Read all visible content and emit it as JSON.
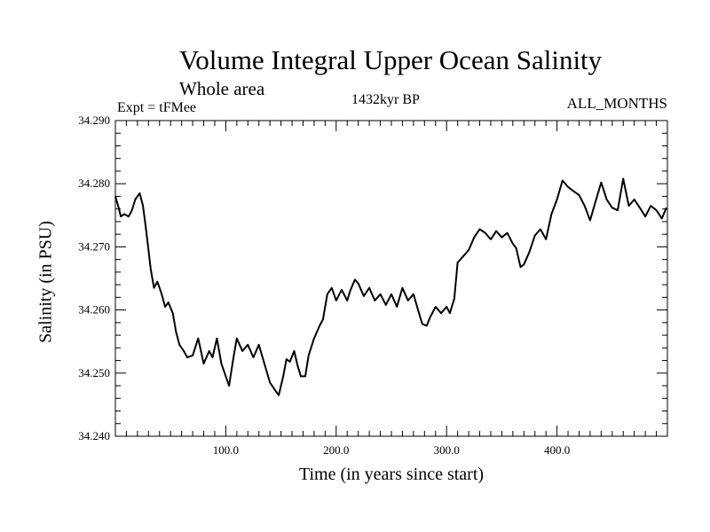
{
  "chart_data": {
    "type": "line",
    "title": "Volume Integral Upper Ocean Salinity",
    "subtitle": "Whole area",
    "annotations": {
      "experiment": "Expt = tFMee",
      "period": "1432kyr BP",
      "season": "ALL_MONTHS"
    },
    "xlabel": "Time (in years since start)",
    "ylabel": "Salinity (in PSU)",
    "xlim": [
      0,
      500
    ],
    "ylim": [
      34.24,
      34.29
    ],
    "xticks": [
      100,
      200,
      300,
      400
    ],
    "xtick_labels": [
      "100.0",
      "200.0",
      "300.0",
      "400.0"
    ],
    "yticks": [
      34.24,
      34.25,
      34.26,
      34.27,
      34.28,
      34.29
    ],
    "ytick_labels": [
      "34.240",
      "34.250",
      "34.260",
      "34.270",
      "34.280",
      "34.290"
    ],
    "grid": false,
    "series": [
      {
        "name": "Salinity",
        "x": [
          0,
          3,
          5,
          8,
          12,
          15,
          18,
          22,
          25,
          28,
          32,
          35,
          38,
          42,
          45,
          48,
          52,
          55,
          58,
          62,
          65,
          70,
          75,
          80,
          85,
          88,
          92,
          96,
          100,
          103,
          107,
          110,
          115,
          120,
          125,
          130,
          135,
          140,
          145,
          148,
          152,
          155,
          158,
          162,
          165,
          168,
          172,
          175,
          180,
          185,
          188,
          192,
          196,
          200,
          205,
          210,
          213,
          217,
          220,
          225,
          230,
          235,
          240,
          245,
          250,
          255,
          260,
          265,
          270,
          275,
          278,
          282,
          285,
          290,
          295,
          300,
          303,
          307,
          310,
          315,
          320,
          325,
          330,
          335,
          340,
          345,
          350,
          355,
          360,
          363,
          367,
          370,
          375,
          380,
          385,
          390,
          395,
          400,
          405,
          410,
          415,
          420,
          425,
          430,
          435,
          440,
          445,
          450,
          455,
          460,
          465,
          470,
          475,
          480,
          485,
          490,
          495,
          499
        ],
        "values": [
          34.278,
          34.2762,
          34.2748,
          34.2752,
          34.2748,
          34.2758,
          34.2775,
          34.2785,
          34.2765,
          34.2725,
          34.2665,
          34.2635,
          34.2645,
          34.2625,
          34.2605,
          34.2612,
          34.2595,
          34.2565,
          34.2545,
          34.2535,
          34.2525,
          34.2528,
          34.2555,
          34.2515,
          34.2535,
          34.2525,
          34.2555,
          34.2515,
          34.2495,
          34.248,
          34.2525,
          34.2555,
          34.2535,
          34.2545,
          34.2525,
          34.2545,
          34.2515,
          34.2485,
          34.2472,
          34.2465,
          34.2495,
          34.2522,
          34.2518,
          34.2535,
          34.2512,
          34.2495,
          34.2495,
          34.2528,
          34.2555,
          34.2575,
          34.2585,
          34.2625,
          34.2635,
          34.2615,
          34.2632,
          34.2615,
          34.2632,
          34.2648,
          34.2642,
          34.2622,
          34.2635,
          34.2615,
          34.2625,
          34.2608,
          34.2625,
          34.2605,
          34.2635,
          34.2615,
          34.2625,
          34.2595,
          34.2578,
          34.2575,
          34.2588,
          34.2605,
          34.2595,
          34.2605,
          34.2595,
          34.2618,
          34.2675,
          34.2685,
          34.2695,
          34.2715,
          34.2728,
          34.2722,
          34.2712,
          34.2725,
          34.2715,
          34.2722,
          34.2705,
          34.2698,
          34.2668,
          34.2672,
          34.2692,
          34.2718,
          34.2728,
          34.2712,
          34.2752,
          34.2775,
          34.2805,
          34.2795,
          34.2788,
          34.2782,
          34.2765,
          34.2742,
          34.2772,
          34.2802,
          34.2775,
          34.2762,
          34.2758,
          34.2808,
          34.2765,
          34.2775,
          34.2762,
          34.2748,
          34.2765,
          34.2758,
          34.2745,
          34.2762
        ]
      }
    ]
  }
}
